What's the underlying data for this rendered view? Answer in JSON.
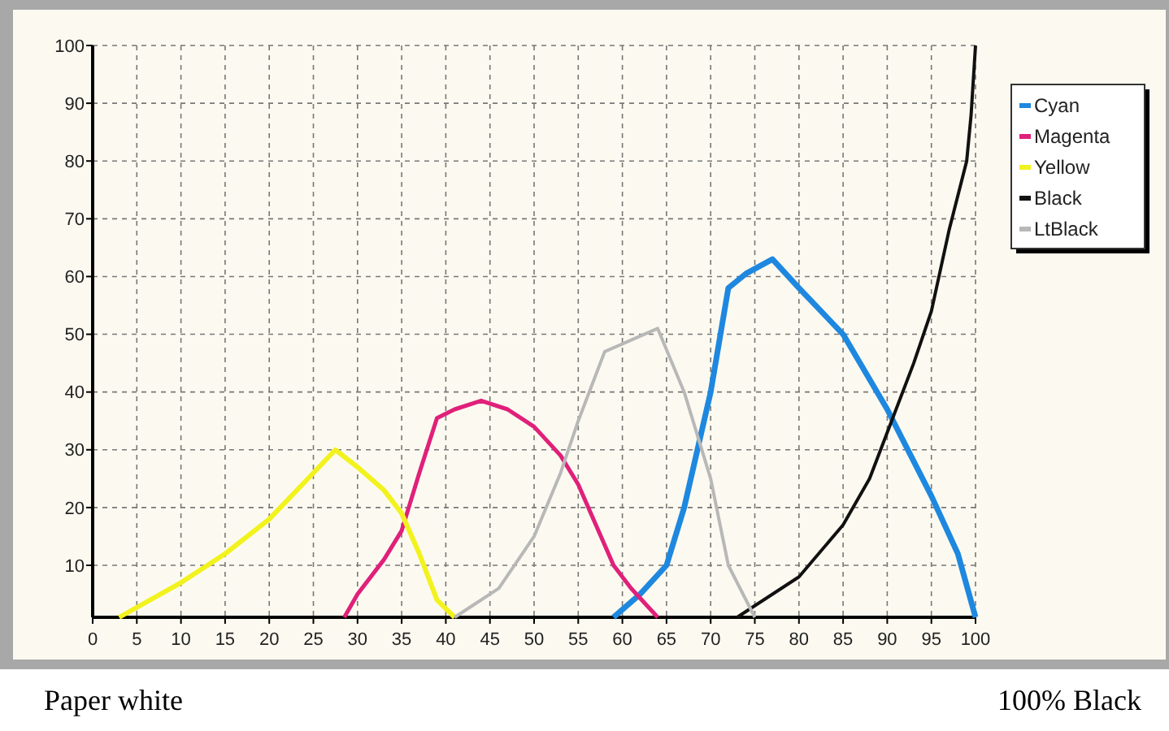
{
  "chart_data": {
    "type": "line",
    "xlim": [
      0,
      100
    ],
    "xticks": [
      0,
      5,
      10,
      15,
      20,
      25,
      30,
      35,
      40,
      45,
      50,
      55,
      60,
      65,
      70,
      75,
      80,
      85,
      90,
      95,
      100
    ],
    "ylim": [
      1,
      100
    ],
    "yticks": [
      10,
      20,
      30,
      40,
      50,
      60,
      70,
      80,
      90,
      100
    ],
    "grid": true,
    "legend": "top right",
    "marker": "none",
    "line_style": "solid",
    "annotations": [
      "Paper white",
      "100% Black"
    ],
    "series": [
      {
        "name": "Cyan",
        "color": "#1e88e0",
        "x": [
          59,
          62,
          65,
          67,
          70,
          72,
          74,
          77,
          80,
          85,
          90,
          95,
          98,
          100
        ],
        "values": [
          1,
          5,
          10,
          20,
          40,
          58,
          60.5,
          63,
          58,
          50,
          37,
          22,
          12,
          1
        ]
      },
      {
        "name": "Magenta",
        "color": "#e0207a",
        "x": [
          28.5,
          30,
          33,
          35,
          37,
          39,
          41,
          44,
          47,
          50,
          53,
          55,
          57,
          59,
          61,
          64
        ],
        "values": [
          1,
          5,
          11,
          16,
          26,
          35.5,
          37,
          38.5,
          37,
          34,
          29,
          24,
          17,
          10,
          6,
          1
        ]
      },
      {
        "name": "Yellow",
        "color": "#f2f21e",
        "x": [
          3,
          10,
          15,
          20,
          25,
          27.5,
          30,
          33,
          35,
          37,
          39,
          41
        ],
        "values": [
          1,
          7,
          12,
          18,
          26,
          30,
          27,
          23,
          19,
          12,
          4,
          1
        ]
      },
      {
        "name": "Black",
        "color": "#111111",
        "x": [
          73,
          75,
          80,
          85,
          88,
          90,
          93,
          95,
          97,
          99,
          99.5,
          100
        ],
        "values": [
          1,
          3,
          8,
          17,
          25,
          33,
          45,
          54,
          68,
          80,
          88,
          100
        ]
      },
      {
        "name": "LtBlack",
        "color": "#b8b8b8",
        "x": [
          41,
          43,
          46,
          50,
          53,
          55,
          57,
          58,
          61,
          64,
          67,
          70,
          72,
          75
        ],
        "values": [
          1,
          3,
          6,
          15,
          26,
          35,
          43,
          47,
          49,
          51,
          40,
          25,
          10,
          1
        ]
      }
    ]
  }
}
